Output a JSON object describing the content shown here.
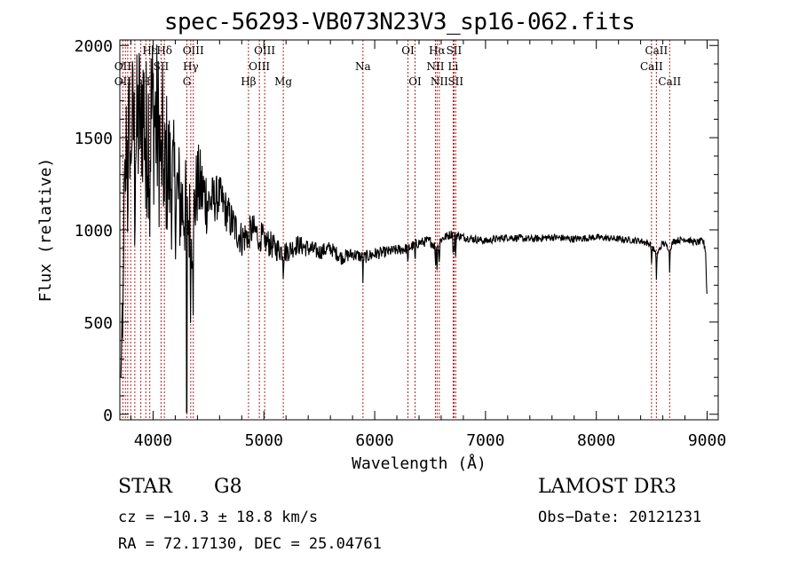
{
  "chart_data": {
    "type": "line",
    "title": "spec-56293-VB073N23V3_sp16-062.fits",
    "xlabel": "Wavelength (Å)",
    "ylabel": "Flux (relative)",
    "xlim": [
      3700,
      9100
    ],
    "ylim": [
      -30,
      2030
    ],
    "xticks": [
      4000,
      5000,
      6000,
      7000,
      8000,
      9000
    ],
    "yticks": [
      0,
      500,
      1000,
      1500,
      2000
    ],
    "series": [
      {
        "name": "flux",
        "x": [
          3710,
          3750,
          3800,
          3850,
          3900,
          3950,
          4000,
          4050,
          4100,
          4150,
          4200,
          4250,
          4300,
          4350,
          4400,
          4500,
          4600,
          4700,
          4800,
          4900,
          5000,
          5100,
          5200,
          5300,
          5400,
          5500,
          5600,
          5700,
          5800,
          5900,
          6000,
          6100,
          6200,
          6300,
          6400,
          6500,
          6563,
          6600,
          6700,
          6800,
          6900,
          7000,
          7200,
          7400,
          7600,
          7800,
          8000,
          8200,
          8400,
          8500,
          8542,
          8600,
          8662,
          8700,
          8800,
          8900,
          8960,
          8985,
          9000
        ],
        "y": [
          200,
          1450,
          1600,
          1500,
          1700,
          1550,
          1650,
          1500,
          1400,
          1300,
          1200,
          1150,
          1100,
          1000,
          1250,
          1150,
          1180,
          1050,
          950,
          1000,
          950,
          900,
          880,
          920,
          900,
          880,
          900,
          850,
          870,
          850,
          870,
          880,
          890,
          900,
          930,
          940,
          900,
          950,
          980,
          960,
          950,
          940,
          960,
          950,
          960,
          950,
          960,
          950,
          940,
          920,
          860,
          930,
          900,
          940,
          950,
          930,
          940,
          900,
          600
        ],
        "noise": [
          0,
          250,
          300,
          350,
          400,
          400,
          400,
          380,
          350,
          300,
          280,
          250,
          220,
          200,
          180,
          150,
          120,
          110,
          100,
          90,
          80,
          70,
          60,
          55,
          50,
          45,
          40,
          40,
          35,
          35,
          35,
          30,
          30,
          30,
          28,
          28,
          28,
          25,
          25,
          22,
          22,
          20,
          20,
          20,
          20,
          20,
          18,
          18,
          18,
          18,
          18,
          18,
          18,
          18,
          18,
          18,
          20,
          30,
          40
        ]
      }
    ],
    "line_markers": [
      {
        "label": "Hε",
        "wavelength": 3970,
        "row": 0
      },
      {
        "label": "Hδ",
        "wavelength": 4102,
        "row": 0
      },
      {
        "label": "OII",
        "wavelength": 3727,
        "row": 1
      },
      {
        "label": "SII",
        "wavelength": 4072,
        "row": 1
      },
      {
        "label": "OII",
        "wavelength": 3727,
        "row": 2
      },
      {
        "label": "H",
        "wavelength": 3934,
        "row": 2
      },
      {
        "label": "OIII",
        "wavelength": 4363,
        "row": 0
      },
      {
        "label": "Hγ",
        "wavelength": 4340,
        "row": 1
      },
      {
        "label": "G",
        "wavelength": 4305,
        "row": 2
      },
      {
        "label": "OIII",
        "wavelength": 5007,
        "row": 0
      },
      {
        "label": "OIII",
        "wavelength": 4959,
        "row": 1
      },
      {
        "label": "Hβ",
        "wavelength": 4861,
        "row": 2
      },
      {
        "label": "Mg",
        "wavelength": 5175,
        "row": 2
      },
      {
        "label": "Na",
        "wavelength": 5894,
        "row": 1
      },
      {
        "label": "OI",
        "wavelength": 6300,
        "row": 0
      },
      {
        "label": "OI",
        "wavelength": 6364,
        "row": 2
      },
      {
        "label": "Hα",
        "wavelength": 6563,
        "row": 0
      },
      {
        "label": "SII",
        "wavelength": 6716,
        "row": 0
      },
      {
        "label": "NII",
        "wavelength": 6548,
        "row": 1
      },
      {
        "label": "Li",
        "wavelength": 6708,
        "row": 1
      },
      {
        "label": "NII",
        "wavelength": 6583,
        "row": 2
      },
      {
        "label": "SII",
        "wavelength": 6731,
        "row": 2
      },
      {
        "label": "CaII",
        "wavelength": 8542,
        "row": 0
      },
      {
        "label": "CaII",
        "wavelength": 8498,
        "row": 1
      },
      {
        "label": "CaII",
        "wavelength": 8662,
        "row": 2
      }
    ],
    "marker_lines": [
      3727,
      3750,
      3771,
      3798,
      3835,
      3889,
      3934,
      3970,
      4072,
      4102,
      4305,
      4340,
      4363,
      4861,
      4959,
      5007,
      5175,
      5894,
      6300,
      6364,
      6548,
      6563,
      6583,
      6708,
      6716,
      6731,
      8498,
      8542,
      8662
    ],
    "colors": {
      "spectrum": "#000000",
      "markers": "#b22222",
      "axes": "#000000"
    }
  },
  "info": {
    "object_class": "STAR",
    "subclass": "G8",
    "survey": "LAMOST DR3",
    "cz": "cz = −10.3 ± 18.8 km/s",
    "obs_date": "Obs−Date: 20121231",
    "radec": "RA =  72.17130, DEC =  25.04761"
  }
}
